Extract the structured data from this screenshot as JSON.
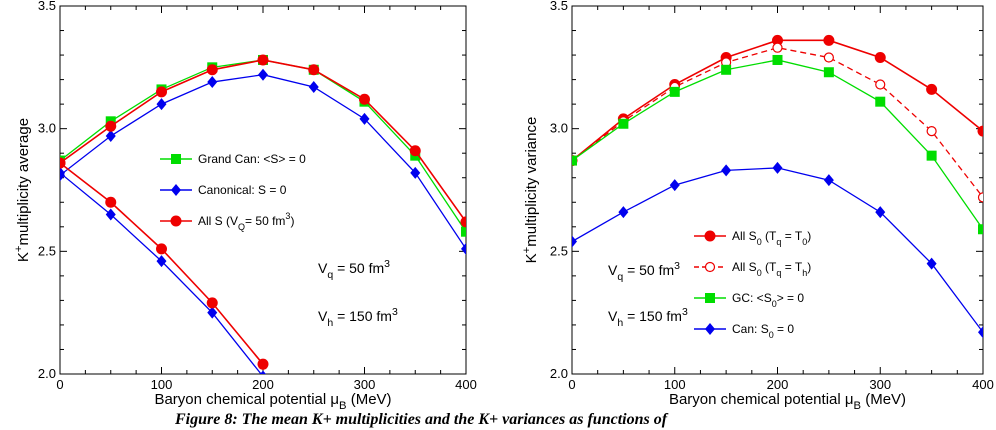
{
  "chart_data": [
    {
      "type": "line",
      "xlabel": "Baryon chemical potential μB (MeV)",
      "ylabel": "K+ multiplicity average",
      "xlim": [
        0,
        400
      ],
      "ylim": [
        2.0,
        3.5
      ],
      "xticks": [
        0,
        100,
        200,
        300,
        400
      ],
      "yticks": [
        2.0,
        2.5,
        3.0,
        3.5
      ],
      "x": [
        0,
        50,
        100,
        150,
        200,
        250,
        300,
        350,
        400
      ],
      "series": [
        {
          "name": "Grand Can: <S> = 0",
          "color": "#00dd00",
          "marker": "square",
          "values": [
            2.87,
            3.03,
            3.16,
            3.25,
            3.28,
            3.24,
            3.11,
            2.89,
            2.58
          ]
        },
        {
          "name": "Canonical: S = 0",
          "color": "#0000ee",
          "marker": "diamond",
          "values": [
            2.81,
            2.97,
            3.1,
            3.19,
            3.22,
            3.17,
            3.04,
            2.82,
            2.51
          ]
        },
        {
          "name": "All S (VQ= 50 fm3)",
          "color": "#ee0000",
          "marker": "circle",
          "values": [
            2.86,
            3.01,
            3.15,
            3.24,
            3.28,
            3.24,
            3.12,
            2.91,
            2.62
          ]
        },
        {
          "name": "",
          "color": "#0000ee",
          "marker": "diamond",
          "x": [
            0,
            50,
            100,
            150,
            200
          ],
          "values": [
            2.82,
            2.65,
            2.46,
            2.25,
            1.99
          ]
        },
        {
          "name": "",
          "color": "#ee0000",
          "marker": "circle",
          "x": [
            0,
            50,
            100,
            150,
            200
          ],
          "values": [
            2.86,
            2.7,
            2.51,
            2.29,
            2.04
          ]
        }
      ],
      "annotations": [
        {
          "text": "Vq =  50 fm3"
        },
        {
          "text": "Vh = 150 fm3"
        }
      ]
    },
    {
      "type": "line",
      "xlabel": "Baryon chemical potential μB (MeV)",
      "ylabel": "K+ multiplicity variance",
      "xlim": [
        0,
        400
      ],
      "ylim": [
        2.0,
        3.5
      ],
      "xticks": [
        0,
        100,
        200,
        300,
        400
      ],
      "yticks": [
        2.0,
        2.5,
        3.0,
        3.5
      ],
      "x": [
        0,
        50,
        100,
        150,
        200,
        250,
        300,
        350,
        400
      ],
      "series": [
        {
          "name": "All S0 (Tq = T0)",
          "color": "#ee0000",
          "marker": "circle",
          "values": [
            2.87,
            3.04,
            3.18,
            3.29,
            3.36,
            3.36,
            3.29,
            3.16,
            2.99
          ]
        },
        {
          "name": "All S0 (Tq = Th)",
          "color": "#ee0000",
          "marker": "open-circle",
          "dashed": true,
          "values": [
            2.87,
            3.03,
            3.17,
            3.27,
            3.33,
            3.29,
            3.18,
            2.99,
            2.72
          ]
        },
        {
          "name": "GC: <S0> = 0",
          "color": "#00dd00",
          "marker": "square",
          "values": [
            2.87,
            3.02,
            3.15,
            3.24,
            3.28,
            3.23,
            3.11,
            2.89,
            2.59
          ]
        },
        {
          "name": "Can: S0 = 0",
          "color": "#0000ee",
          "marker": "diamond",
          "values": [
            2.54,
            2.66,
            2.77,
            2.83,
            2.84,
            2.79,
            2.66,
            2.45,
            2.17
          ]
        }
      ],
      "annotations": [
        {
          "text": "Vq =  50 fm3"
        },
        {
          "text": "Vh = 150 fm3"
        }
      ]
    }
  ],
  "caption": "Figure 8:  The mean K+ multiplicities and the K+ variances as functions of"
}
